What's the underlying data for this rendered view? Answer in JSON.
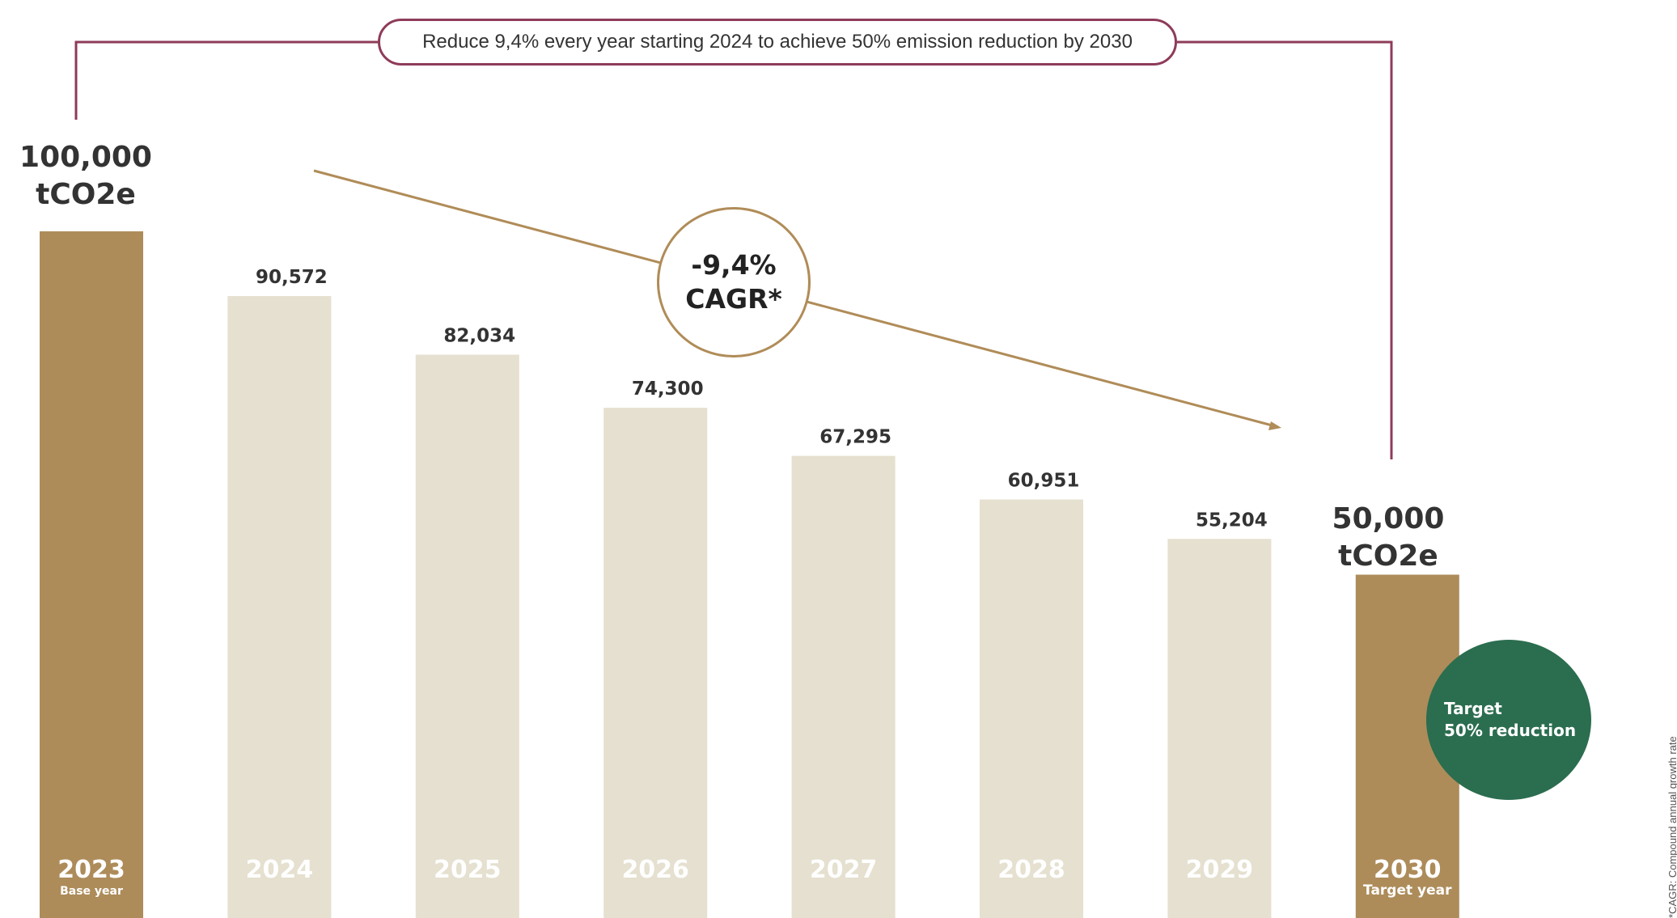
{
  "colors": {
    "highlight_bar": "#ad8c5a",
    "regular_bar": "#e5e0cf",
    "connector": "#8e3b5a",
    "trend_line": "#b08c58",
    "target_badge": "#2b6d4f",
    "label_text": "#333333"
  },
  "banner": {
    "text": "Reduce 9,4% every year starting 2024 to achieve 50% emission reduction by 2030"
  },
  "cagr_badge": {
    "value": "-9,4%",
    "label": "CAGR*"
  },
  "baseline_label": {
    "value": "100,000",
    "unit": "tCO2e"
  },
  "target_label": {
    "value": "50,000",
    "unit": "tCO2e"
  },
  "target_badge": {
    "line1": "Target",
    "line2": "50% reduction"
  },
  "footnote": "*CAGR: Compound annual growth rate",
  "chart_data": {
    "type": "bar",
    "categories": [
      "2023",
      "2024",
      "2025",
      "2026",
      "2027",
      "2028",
      "2029",
      "2030"
    ],
    "values": [
      100000,
      90572,
      82034,
      74300,
      67295,
      60951,
      55204,
      50000
    ],
    "value_labels": [
      "",
      "90,572",
      "82,034",
      "74,300",
      "67,295",
      "60,951",
      "55,204",
      ""
    ],
    "sublabels": [
      "Base year",
      "",
      "",
      "",
      "",
      "",
      "",
      "Target year"
    ],
    "highlighted": [
      true,
      false,
      false,
      false,
      false,
      false,
      false,
      true
    ],
    "unit": "tCO2e",
    "title": "",
    "xlabel": "",
    "ylabel": "",
    "ylim": [
      0,
      100000
    ],
    "grid": false,
    "legend": "none"
  }
}
